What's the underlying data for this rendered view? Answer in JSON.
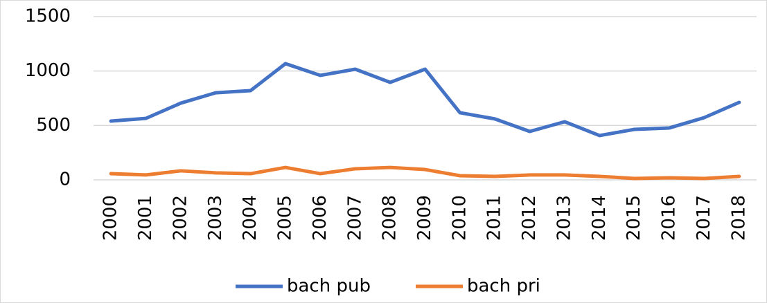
{
  "chart_data": {
    "type": "line",
    "categories": [
      "2000",
      "2001",
      "2002",
      "2003",
      "2004",
      "2005",
      "2006",
      "2007",
      "2008",
      "2009",
      "2010",
      "2011",
      "2012",
      "2013",
      "2014",
      "2015",
      "2016",
      "2017",
      "2018"
    ],
    "series": [
      {
        "name": "bach pub",
        "color": "#4472c4",
        "values": [
          540,
          565,
          705,
          800,
          820,
          1068,
          960,
          1017,
          896,
          1017,
          617,
          560,
          445,
          534,
          407,
          464,
          477,
          572,
          712
        ]
      },
      {
        "name": "bach pri",
        "color": "#ed7d31",
        "values": [
          57,
          45,
          83,
          64,
          57,
          114,
          57,
          102,
          114,
          95,
          38,
          32,
          45,
          45,
          32,
          13,
          19,
          13,
          32
        ]
      }
    ],
    "ylim": [
      0,
      1500
    ],
    "yticks": [
      0,
      500,
      1000,
      1500
    ],
    "grid": true,
    "legend": "bottom"
  }
}
